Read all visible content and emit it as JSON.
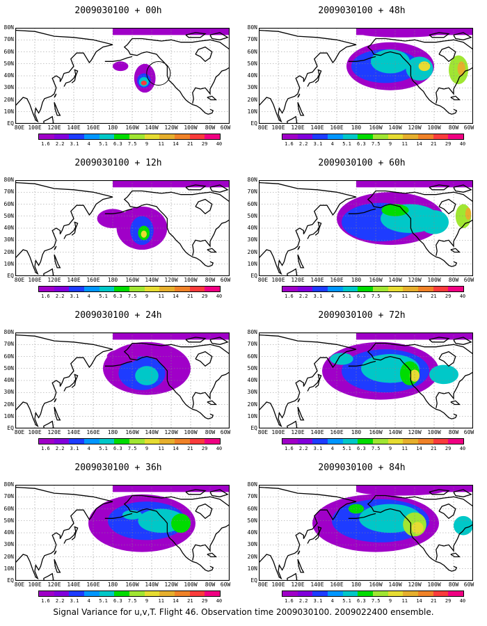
{
  "panels": [
    {
      "title": "2009030100 + 00h",
      "lead": "00h"
    },
    {
      "title": "2009030100 + 48h",
      "lead": "48h"
    },
    {
      "title": "2009030100 + 12h",
      "lead": "12h"
    },
    {
      "title": "2009030100 + 60h",
      "lead": "60h"
    },
    {
      "title": "2009030100 + 24h",
      "lead": "24h"
    },
    {
      "title": "2009030100 + 72h",
      "lead": "72h"
    },
    {
      "title": "2009030100 + 36h",
      "lead": "36h"
    },
    {
      "title": "2009030100 + 84h",
      "lead": "84h"
    }
  ],
  "lat_labels": [
    "80N",
    "70N",
    "60N",
    "50N",
    "40N",
    "30N",
    "20N",
    "10N",
    "EQ"
  ],
  "lon_labels": [
    "80E",
    "100E",
    "120E",
    "140E",
    "160E",
    "180",
    "160W",
    "140W",
    "120W",
    "100W",
    "80W",
    "60W"
  ],
  "colorbar": {
    "labels": [
      "1.6",
      "2.2",
      "3.1",
      "4",
      "5.1",
      "6.3",
      "7.5",
      "9",
      "11",
      "14",
      "21",
      "29",
      "40"
    ],
    "colors": [
      "#a000c8",
      "#8200dc",
      "#1e3cff",
      "#0096ff",
      "#00c8c8",
      "#00dc00",
      "#a0e632",
      "#e6dc32",
      "#e6af2d",
      "#f08228",
      "#fa3c3c",
      "#f00082"
    ]
  },
  "caption": "Signal Variance for u,v,T. Flight 46. Observation time 2009030100. 2009022400 ensemble."
}
